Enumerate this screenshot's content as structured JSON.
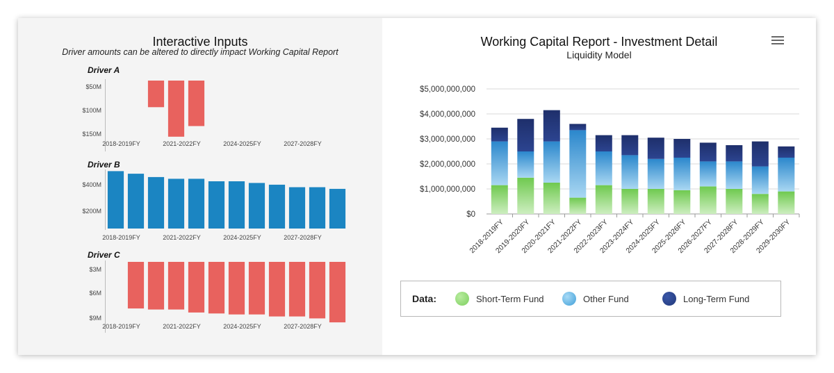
{
  "left_panel": {
    "title": "Interactive Inputs",
    "subtitle": "Driver amounts can be altered to directly impact Working Capital Report"
  },
  "right_panel": {
    "title": "Working Capital Report - Investment Detail",
    "subtitle": "Liquidity Model",
    "menu_icon": "hamburger-menu-icon"
  },
  "legend": {
    "title": "Data:",
    "items": [
      {
        "label": "Short-Term Fund",
        "color": "#7dcf5f"
      },
      {
        "label": "Other Fund",
        "color": "#3f9fd8"
      },
      {
        "label": "Long-Term Fund",
        "color": "#22397a"
      }
    ]
  },
  "chart_data": [
    {
      "type": "bar",
      "title": "Driver A",
      "color": "#e8625e",
      "x_tick_labels": [
        "2018-2019FY",
        "2021-2022FY",
        "2024-2025FY",
        "2027-2028FY"
      ],
      "y_tick_labels": [
        "$50M",
        "$100M",
        "$150M"
      ],
      "ylim": [
        30,
        150
      ],
      "inverted": true,
      "categories": [
        "2018-2019FY",
        "2019-2020FY",
        "2020-2021FY",
        "2021-2022FY",
        "2022-2023FY",
        "2023-2024FY",
        "2024-2025FY",
        "2025-2026FY",
        "2026-2027FY",
        "2027-2028FY",
        "2028-2029FY",
        "2029-2030FY"
      ],
      "values": [
        null,
        null,
        75,
        125,
        107,
        null,
        null,
        null,
        null,
        null,
        null,
        null
      ]
    },
    {
      "type": "bar",
      "title": "Driver B",
      "color": "#1b85c2",
      "x_tick_labels": [
        "2018-2019FY",
        "2021-2022FY",
        "2024-2025FY",
        "2027-2028FY"
      ],
      "y_tick_labels": [
        "$400M",
        "$200M"
      ],
      "ylim": [
        100,
        450
      ],
      "categories": [
        "2018-2019FY",
        "2019-2020FY",
        "2020-2021FY",
        "2021-2022FY",
        "2022-2023FY",
        "2023-2024FY",
        "2024-2025FY",
        "2025-2026FY",
        "2026-2027FY",
        "2027-2028FY",
        "2028-2029FY",
        "2029-2030FY"
      ],
      "values": [
        440,
        425,
        405,
        395,
        395,
        380,
        380,
        370,
        360,
        345,
        345,
        335
      ]
    },
    {
      "type": "bar",
      "title": "Driver C",
      "color": "#e8625e",
      "x_tick_labels": [
        "2018-2019FY",
        "2021-2022FY",
        "2024-2025FY",
        "2027-2028FY"
      ],
      "y_tick_labels": [
        "$3M",
        "$6M",
        "$9M"
      ],
      "ylim": [
        2,
        9
      ],
      "inverted": true,
      "categories": [
        "2018-2019FY",
        "2019-2020FY",
        "2020-2021FY",
        "2021-2022FY",
        "2022-2023FY",
        "2023-2024FY",
        "2024-2025FY",
        "2025-2026FY",
        "2026-2027FY",
        "2027-2028FY",
        "2028-2029FY",
        "2029-2030FY"
      ],
      "values": [
        null,
        6.7,
        6.8,
        6.8,
        7.1,
        7.2,
        7.3,
        7.3,
        7.5,
        7.5,
        7.7,
        8.1
      ]
    },
    {
      "type": "bar",
      "stacked": true,
      "title": "Working Capital Report - Investment Detail",
      "subtitle": "Liquidity Model",
      "y_tick_labels": [
        "$0",
        "$1,000,000,000",
        "$2,000,000,000",
        "$3,000,000,000",
        "$4,000,000,000",
        "$5,000,000,000"
      ],
      "ylim": [
        0,
        5000000000
      ],
      "grid": true,
      "legend_position": "bottom",
      "categories": [
        "2018-2019FY",
        "2019-2020FY",
        "2020-2021FY",
        "2021-2022FY",
        "2022-2023FY",
        "2023-2024FY",
        "2024-2025FY",
        "2025-2026FY",
        "2026-2027FY",
        "2027-2028FY",
        "2028-2029FY",
        "2029-2030FY"
      ],
      "series": [
        {
          "name": "Short-Term Fund",
          "color": "#7dcf5f",
          "values": [
            1150000000,
            1450000000,
            1250000000,
            650000000,
            1150000000,
            1000000000,
            1000000000,
            950000000,
            1100000000,
            1000000000,
            800000000,
            900000000
          ]
        },
        {
          "name": "Other Fund",
          "color": "#3f9fd8",
          "values": [
            1750000000,
            1050000000,
            1650000000,
            2700000000,
            1350000000,
            1350000000,
            1200000000,
            1300000000,
            1000000000,
            1100000000,
            1100000000,
            1350000000
          ]
        },
        {
          "name": "Long-Term Fund",
          "color": "#22397a",
          "values": [
            550000000,
            1300000000,
            1250000000,
            250000000,
            650000000,
            800000000,
            850000000,
            750000000,
            750000000,
            650000000,
            1000000000,
            450000000
          ]
        }
      ]
    }
  ]
}
